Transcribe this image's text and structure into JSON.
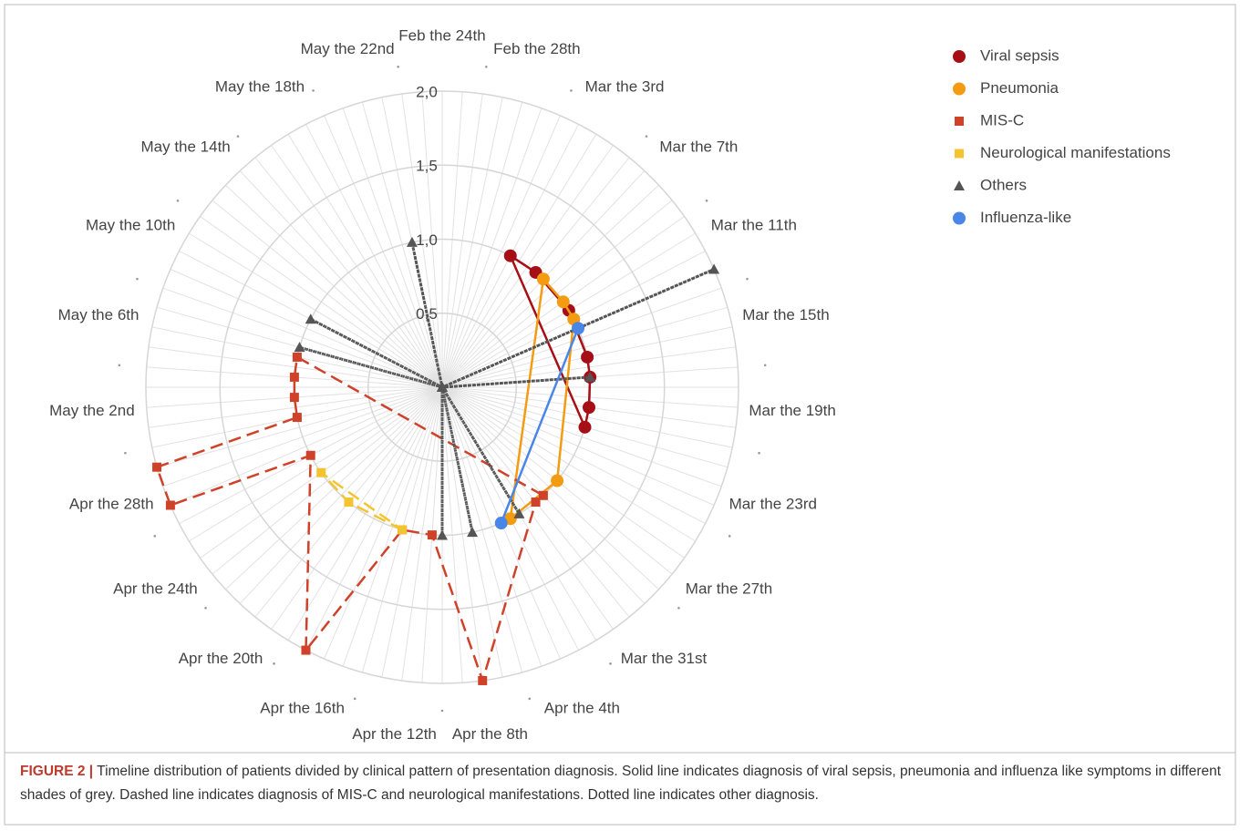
{
  "chart_data": {
    "type": "radar",
    "categories": [
      "Feb the 24th",
      null,
      null,
      null,
      "Feb the 28th",
      null,
      null,
      null,
      "Mar the 3rd",
      null,
      null,
      null,
      "Mar the 7th",
      null,
      null,
      null,
      "Mar the 11th",
      null,
      null,
      null,
      "Mar the 15th",
      null,
      null,
      null,
      "Mar the 19th",
      null,
      null,
      null,
      "Mar the 23rd",
      null,
      null,
      null,
      "Mar the 27th",
      null,
      null,
      null,
      "Mar the 31st",
      null,
      null,
      null,
      "Apr the 4th",
      null,
      null,
      null,
      "Apr the 8th",
      null,
      null,
      null,
      "Apr the 12th",
      null,
      null,
      null,
      "Apr the 16th",
      null,
      null,
      null,
      "Apr the 20th",
      null,
      null,
      null,
      "Apr the 24th",
      null,
      null,
      null,
      "Apr the 28th",
      null,
      null,
      null,
      "May the 2nd",
      null,
      null,
      null,
      "May the 6th",
      null,
      null,
      null,
      "May the 10th",
      null,
      null,
      null,
      "May the 14th",
      null,
      null,
      null,
      "May the 18th",
      null,
      null,
      null,
      "May the 22nd",
      null,
      null,
      null
    ],
    "ylim": [
      0,
      2
    ],
    "yticks": [
      {
        "value": 0.5,
        "label": "0,5"
      },
      {
        "value": 1,
        "label": "1,0"
      },
      {
        "value": 1.5,
        "label": "1,5"
      },
      {
        "value": 2,
        "label": "2,0"
      }
    ],
    "grid": true,
    "legend": "top-right",
    "series": [
      {
        "name": "Viral sepsis",
        "color": "#a50f15",
        "marker": "circle",
        "line_style": "solid",
        "values": [
          null,
          null,
          null,
          null,
          null,
          null,
          null,
          1,
          null,
          null,
          1,
          null,
          null,
          null,
          null,
          1,
          null,
          null,
          null,
          null,
          1,
          null,
          1,
          null,
          null,
          1,
          null,
          1,
          null,
          null,
          null,
          null,
          null,
          null,
          null,
          null,
          null,
          null,
          null,
          null,
          null,
          null,
          null,
          null,
          null,
          null,
          null,
          null,
          null,
          null,
          null,
          null,
          null,
          null,
          null,
          null,
          null,
          null,
          null,
          null,
          null,
          null,
          null,
          null,
          null,
          null,
          null,
          null,
          null,
          null,
          null,
          null,
          null,
          null,
          null,
          null,
          null,
          null,
          null,
          null,
          null,
          null,
          null,
          null,
          null,
          null,
          null,
          null,
          null,
          null,
          null,
          null
        ]
      },
      {
        "name": "Pneumonia",
        "color": "#f39c12",
        "marker": "circle",
        "line_style": "solid",
        "values": [
          null,
          null,
          null,
          null,
          null,
          null,
          null,
          null,
          null,
          null,
          null,
          1,
          null,
          null,
          1,
          null,
          1,
          null,
          null,
          null,
          null,
          null,
          null,
          null,
          null,
          null,
          null,
          null,
          null,
          null,
          null,
          null,
          null,
          1,
          null,
          null,
          null,
          null,
          null,
          1,
          null,
          null,
          null,
          null,
          null,
          null,
          null,
          null,
          null,
          null,
          null,
          null,
          null,
          null,
          null,
          null,
          null,
          null,
          null,
          null,
          null,
          null,
          null,
          null,
          null,
          null,
          null,
          null,
          null,
          null,
          null,
          null,
          null,
          null,
          null,
          null,
          null,
          null,
          null,
          null,
          null,
          null,
          null,
          null,
          null,
          null,
          null,
          null,
          null,
          null,
          null,
          null
        ]
      },
      {
        "name": "MIS-C",
        "color": "#d0412a",
        "marker": "square",
        "line_style": "dashed",
        "values": [
          null,
          null,
          null,
          null,
          null,
          null,
          null,
          null,
          null,
          null,
          null,
          null,
          null,
          null,
          null,
          null,
          null,
          null,
          null,
          null,
          null,
          null,
          null,
          null,
          null,
          null,
          null,
          null,
          null,
          null,
          null,
          null,
          null,
          null,
          null,
          1,
          1,
          null,
          null,
          null,
          null,
          null,
          null,
          null,
          2,
          null,
          null,
          1,
          null,
          null,
          1,
          null,
          null,
          2,
          null,
          null,
          null,
          null,
          null,
          null,
          null,
          null,
          1,
          2,
          null,
          2,
          1,
          null,
          1,
          null,
          1,
          null,
          1,
          null,
          null,
          null,
          null,
          null,
          null,
          null,
          null,
          null,
          null,
          null,
          null,
          null,
          null,
          null,
          null,
          null,
          null,
          null
        ]
      },
      {
        "name": "Neurological manifestations",
        "color": "#f4c430",
        "marker": "square",
        "line_style": "dashed",
        "values": [
          null,
          null,
          null,
          null,
          null,
          null,
          null,
          null,
          null,
          null,
          null,
          null,
          null,
          null,
          null,
          null,
          null,
          null,
          null,
          null,
          null,
          null,
          null,
          null,
          null,
          null,
          null,
          null,
          null,
          null,
          null,
          null,
          null,
          null,
          null,
          null,
          null,
          null,
          null,
          null,
          null,
          null,
          null,
          null,
          null,
          null,
          null,
          null,
          null,
          null,
          1,
          null,
          null,
          null,
          null,
          null,
          1,
          null,
          null,
          null,
          1,
          null,
          null,
          null,
          null,
          null,
          null,
          null,
          null,
          null,
          null,
          null,
          null,
          null,
          null,
          null,
          null,
          null,
          null,
          null,
          null,
          null,
          null,
          null,
          null,
          null,
          null,
          null,
          null,
          null,
          null,
          null
        ]
      },
      {
        "name": "Others",
        "color": "#555555",
        "marker": "triangle",
        "line_style": "dotted",
        "values": [
          null,
          null,
          null,
          null,
          null,
          null,
          null,
          null,
          null,
          null,
          null,
          null,
          null,
          null,
          null,
          null,
          null,
          2,
          0,
          null,
          null,
          null,
          1,
          0,
          null,
          null,
          null,
          null,
          null,
          null,
          null,
          null,
          null,
          null,
          null,
          null,
          null,
          null,
          1,
          0,
          null,
          null,
          null,
          1,
          0,
          null,
          1,
          0,
          null,
          null,
          null,
          null,
          null,
          null,
          null,
          null,
          null,
          null,
          null,
          null,
          null,
          null,
          null,
          null,
          null,
          null,
          null,
          null,
          null,
          null,
          null,
          null,
          null,
          1,
          0,
          null,
          1,
          0,
          null,
          null,
          null,
          null,
          null,
          null,
          null,
          null,
          null,
          null,
          null,
          1,
          0,
          null
        ]
      },
      {
        "name": "Influenza-like",
        "color": "#4a86e8",
        "marker": "circle",
        "line_style": "solid",
        "values": [
          null,
          null,
          null,
          null,
          null,
          null,
          null,
          null,
          null,
          null,
          null,
          null,
          null,
          null,
          null,
          null,
          null,
          1,
          null,
          null,
          null,
          null,
          null,
          null,
          null,
          null,
          null,
          null,
          null,
          null,
          null,
          null,
          null,
          null,
          null,
          null,
          null,
          null,
          null,
          null,
          1,
          null,
          null,
          null,
          null,
          null,
          null,
          null,
          null,
          null,
          null,
          null,
          null,
          null,
          null,
          null,
          null,
          null,
          null,
          null,
          null,
          null,
          null,
          null,
          null,
          null,
          null,
          null,
          null,
          null,
          null,
          null,
          null,
          null,
          null,
          null,
          null,
          null,
          null,
          null,
          null,
          null,
          null,
          null,
          null,
          null,
          null,
          null,
          null,
          null,
          null,
          null
        ]
      }
    ],
    "caption_label": "FIGURE 2 |",
    "caption": "Timeline distribution of patients divided by clinical pattern of presentation diagnosis. Solid line indicates diagnosis of viral sepsis, pneumonia and influenza like symptoms in different shades of grey. Dashed line indicates diagnosis of MIS-C and neurological manifestations. Dotted line indicates other diagnosis."
  }
}
